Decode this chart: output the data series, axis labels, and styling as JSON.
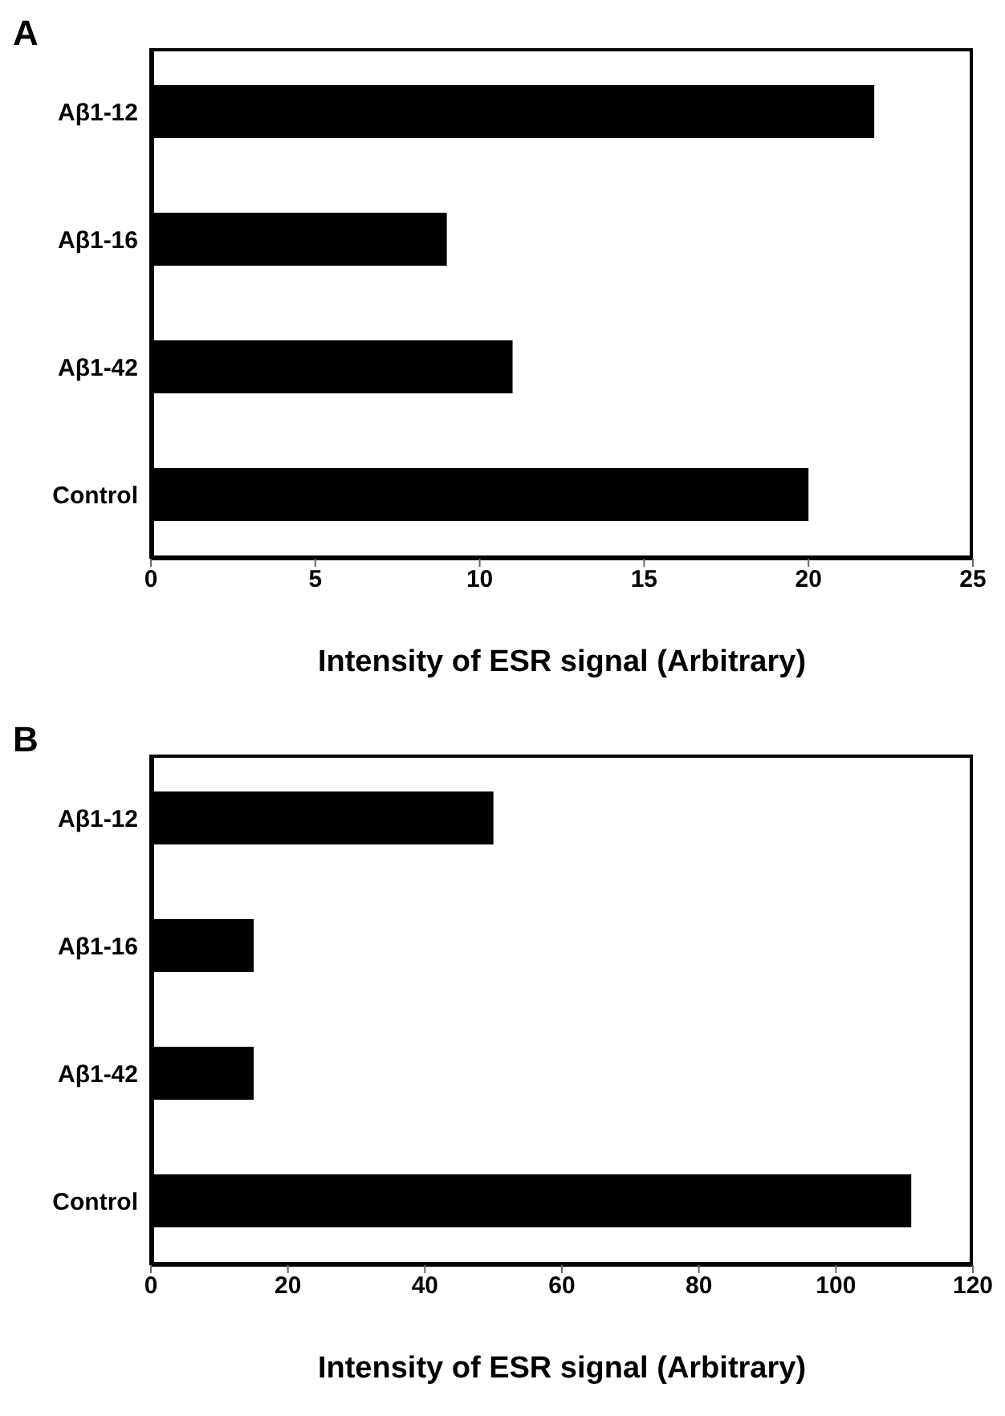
{
  "chart_data": [
    {
      "type": "bar",
      "orientation": "horizontal",
      "title": "A",
      "xlabel": "Intensity of ESR signal (Arbitrary)",
      "categories": [
        "Aβ1-12",
        "Aβ1-16",
        "Aβ1-42",
        "Control"
      ],
      "values": [
        22,
        9,
        11,
        20
      ],
      "color": "#000000",
      "xlim": [
        0,
        25
      ],
      "xticks": [
        0,
        5,
        10,
        15,
        20,
        25
      ],
      "grid": false
    },
    {
      "type": "bar",
      "orientation": "horizontal",
      "title": "B",
      "xlabel": "Intensity of ESR signal (Arbitrary)",
      "categories": [
        "Aβ1-12",
        "Aβ1-16",
        "Aβ1-42",
        "Control"
      ],
      "values": [
        50,
        15,
        15,
        111
      ],
      "color": "#000000",
      "xlim": [
        0,
        120
      ],
      "xticks": [
        0,
        20,
        40,
        60,
        80,
        100,
        120
      ],
      "grid": false
    }
  ]
}
